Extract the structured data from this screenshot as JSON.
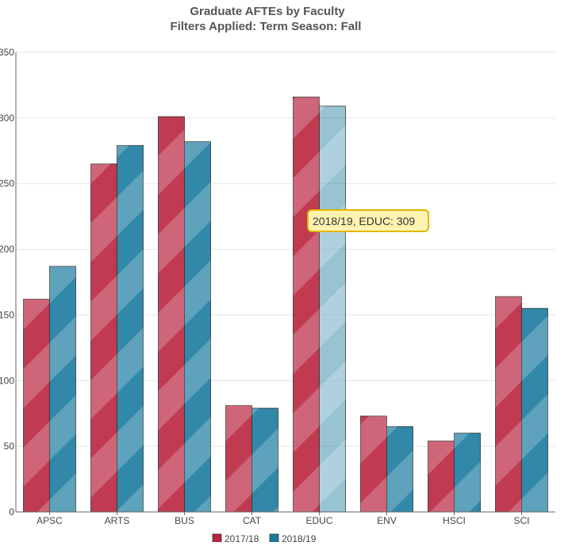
{
  "title": "Graduate AFTEs by Faculty",
  "subtitle": "Filters Applied: Term Season: Fall",
  "colors": {
    "series_2017": "#b9253f",
    "series_2018": "#1b7b9e",
    "grid": "#e6e6e6",
    "axis": "#666666",
    "tooltip_bg": "#fff3b0",
    "tooltip_border": "#e0b800"
  },
  "tooltip": {
    "text": "2018/19, EDUC: 309",
    "category": "EDUC",
    "series": "2018/19"
  },
  "chart_data": {
    "type": "bar",
    "title": "Graduate AFTEs by Faculty",
    "subtitle": "Filters Applied: Term Season: Fall",
    "categories": [
      "APSC",
      "ARTS",
      "BUS",
      "CAT",
      "EDUC",
      "ENV",
      "HSCI",
      "SCI"
    ],
    "series": [
      {
        "name": "2017/18",
        "color": "#b9253f",
        "values": [
          162,
          265,
          301,
          81,
          316,
          73,
          54,
          164
        ]
      },
      {
        "name": "2018/19",
        "color": "#1b7b9e",
        "values": [
          187,
          279,
          282,
          79,
          309,
          65,
          60,
          155
        ]
      }
    ],
    "xlabel": "",
    "ylabel": "",
    "ylim": [
      0,
      350
    ],
    "yticks": [
      0,
      50,
      100,
      150,
      200,
      250,
      300,
      350
    ],
    "grid": true,
    "legend": "bottom-center"
  }
}
